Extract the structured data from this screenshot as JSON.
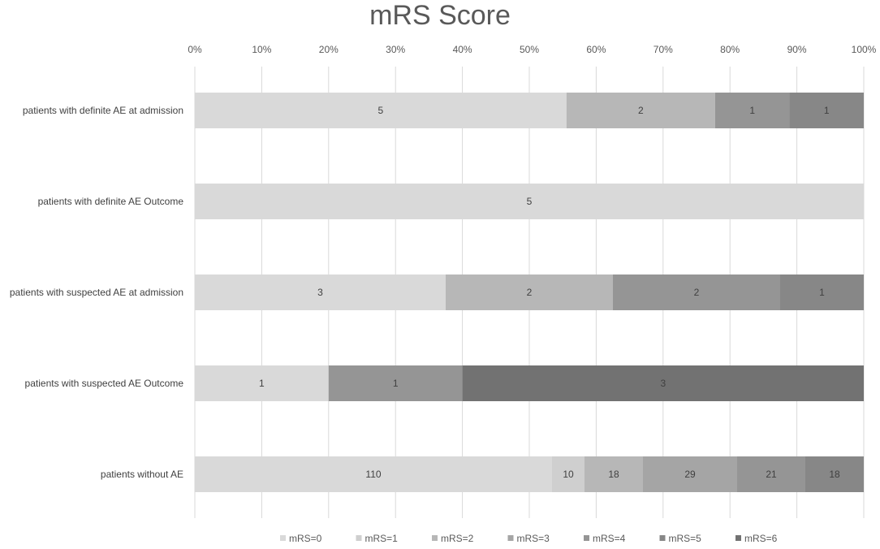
{
  "chart_data": {
    "type": "bar",
    "orientation": "horizontal",
    "stacking": "percent",
    "title": "mRS Score",
    "x_axis_position": "top",
    "xlim": [
      0,
      100
    ],
    "x_ticks": [
      "0%",
      "10%",
      "20%",
      "30%",
      "40%",
      "50%",
      "60%",
      "70%",
      "80%",
      "90%",
      "100%"
    ],
    "grid": true,
    "legend_position": "bottom",
    "categories": [
      "patients with definite AE at admission",
      "patients with definite AE Outcome",
      "patients with suspected AE at admission",
      "patients with suspected AE Outcome",
      "patients without AE"
    ],
    "series": [
      {
        "name": "mRS=0",
        "color": "#d9d9d9",
        "values": [
          5,
          5,
          3,
          1,
          110
        ]
      },
      {
        "name": "mRS=1",
        "color": "#cfcfcf",
        "values": [
          0,
          0,
          0,
          0,
          10
        ]
      },
      {
        "name": "mRS=2",
        "color": "#b7b7b7",
        "values": [
          2,
          0,
          2,
          0,
          18
        ]
      },
      {
        "name": "mRS=3",
        "color": "#a5a5a5",
        "values": [
          0,
          0,
          0,
          0,
          29
        ]
      },
      {
        "name": "mRS=4",
        "color": "#959595",
        "values": [
          1,
          0,
          2,
          1,
          21
        ]
      },
      {
        "name": "mRS=5",
        "color": "#878787",
        "values": [
          1,
          0,
          1,
          0,
          18
        ]
      },
      {
        "name": "mRS=6",
        "color": "#727272",
        "values": [
          0,
          0,
          0,
          3,
          0
        ]
      }
    ],
    "colors": {
      "grid": "#d9d9d9",
      "text": "#595959"
    }
  }
}
